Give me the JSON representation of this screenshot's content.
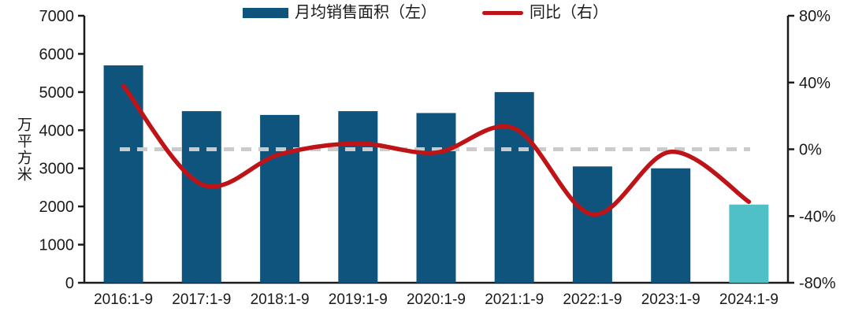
{
  "colors": {
    "bar": "#0F547C",
    "bar_highlight": "#4EC0C6",
    "line": "#BE1418",
    "zero_dash": "#CBCBCB",
    "axis": "#1A1A1A",
    "text": "#1A1A1A",
    "background": "#FFFFFF"
  },
  "legend": {
    "bar_label": "月均销售面积（左）",
    "line_label": "同比（右）"
  },
  "y_left_label": "万平方米",
  "chart_data": {
    "type": "combo-bar-line",
    "categories": [
      "2016:1-9",
      "2017:1-9",
      "2018:1-9",
      "2019:1-9",
      "2020:1-9",
      "2021:1-9",
      "2022:1-9",
      "2023:1-9",
      "2024:1-9"
    ],
    "series": [
      {
        "name": "月均销售面积（左）",
        "type": "bar",
        "axis": "left",
        "values": [
          5700,
          4500,
          4400,
          4500,
          4450,
          5000,
          3050,
          3000,
          2050
        ],
        "highlight_index": 8
      },
      {
        "name": "同比（右）",
        "type": "line",
        "axis": "right",
        "values": [
          38,
          -21,
          -3,
          3.5,
          -2,
          12.5,
          -39,
          -1.5,
          -31.5
        ],
        "smooth": true
      }
    ],
    "y_left": {
      "label": "万平方米",
      "min": 0,
      "max": 7000,
      "ticks": [
        0,
        1000,
        2000,
        3000,
        4000,
        5000,
        6000,
        7000
      ]
    },
    "y_right": {
      "min": -80,
      "max": 80,
      "ticks": [
        -80,
        -40,
        0,
        40,
        80
      ],
      "tick_suffix": "%"
    },
    "zero_reference_line": true,
    "grid": false,
    "legend_position": "top"
  }
}
